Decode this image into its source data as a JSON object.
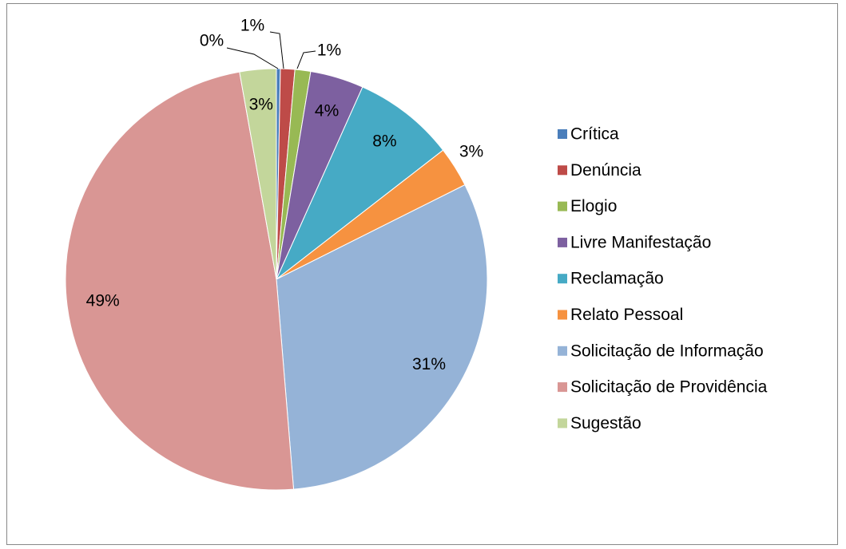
{
  "chart_data": {
    "type": "pie",
    "categories": [
      "Crítica",
      "Denúncia",
      "Elogio",
      "Livre Manifestação",
      "Reclamação",
      "Relato Pessoal",
      "Solicitação de Informação",
      "Solicitação de Providência",
      "Sugestão"
    ],
    "values": [
      0.3,
      1.1,
      1.2,
      4.1,
      7.8,
      3.1,
      31.1,
      48.5,
      2.8
    ],
    "value_labels": [
      "0%",
      "1%",
      "1%",
      "4%",
      "8%",
      "3%",
      "31%",
      "49%",
      "3%"
    ],
    "colors": [
      "#4a7ebb",
      "#be4b48",
      "#98b954",
      "#7d60a0",
      "#46aac5",
      "#f69240",
      "#95b3d7",
      "#d99694",
      "#c3d69b"
    ],
    "legend": "right"
  }
}
